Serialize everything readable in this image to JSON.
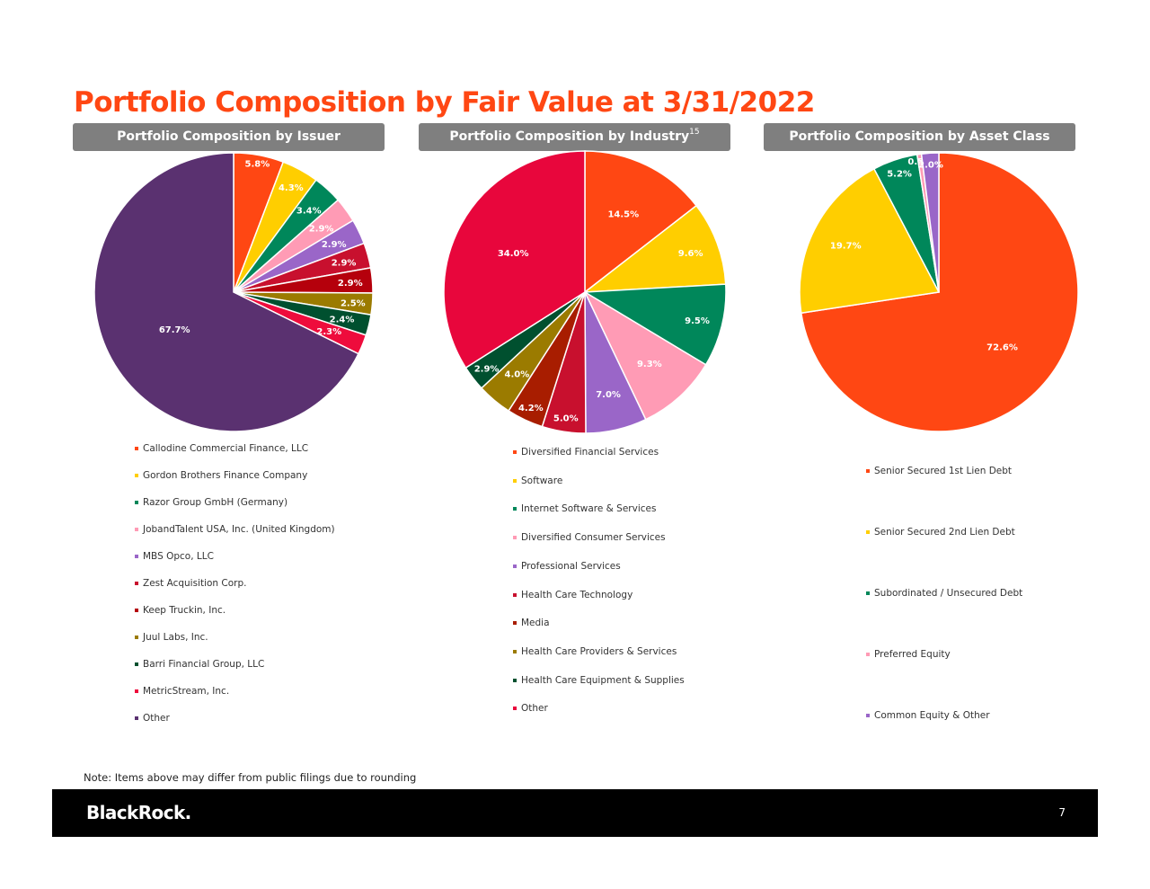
{
  "title": "Portfolio Composition by Fair Value at 3/31/2022",
  "note": "Note: Items above may differ from public filings due to rounding",
  "footer": {
    "logo_text": "BlackRock.",
    "page_number": "7"
  },
  "chart_data": [
    {
      "type": "pie",
      "title": "Portfolio Composition by Issuer",
      "title_superscript": "",
      "categories": [
        "Callodine Commercial Finance, LLC",
        "Gordon Brothers Finance Company",
        "Razor Group GmbH (Germany)",
        "JobandTalent USA, Inc. (United Kingdom)",
        "MBS Opco, LLC",
        "Zest Acquisition Corp.",
        "Keep Truckin, Inc.",
        "Juul Labs, Inc.",
        "Barri Financial Group, LLC",
        "MetricStream, Inc.",
        "Other"
      ],
      "values": [
        5.8,
        4.3,
        3.4,
        2.9,
        2.9,
        2.9,
        2.9,
        2.5,
        2.4,
        2.3,
        67.7
      ],
      "labels": [
        "5.8%",
        "4.3%",
        "3.4%",
        "2.9%",
        "2.9%",
        "2.9%",
        "2.9%",
        "2.5%",
        "2.4%",
        "2.3%",
        "67.7%"
      ],
      "colors": [
        "#ff4713",
        "#ffce00",
        "#00875a",
        "#ff9bb5",
        "#9a66c8",
        "#c8102e",
        "#b5000c",
        "#9b7b00",
        "#00502f",
        "#ee0c3c",
        "#5a3170"
      ],
      "legend_position": "bottom"
    },
    {
      "type": "pie",
      "title": "Portfolio Composition by Industry",
      "title_superscript": "15",
      "categories": [
        "Diversified Financial Services",
        "Software",
        "Internet Software & Services",
        "Diversified Consumer Services",
        "Professional Services",
        "Health Care Technology",
        "Media",
        "Health Care Providers & Services",
        "Health Care Equipment & Supplies",
        "Other"
      ],
      "values": [
        14.5,
        9.6,
        9.5,
        9.3,
        7.0,
        5.0,
        4.2,
        4.0,
        2.9,
        34.0
      ],
      "labels": [
        "14.5%",
        "9.6%",
        "9.5%",
        "9.3%",
        "7.0%",
        "5.0%",
        "4.2%",
        "4.0%",
        "2.9%",
        "34.0%"
      ],
      "colors": [
        "#ff4713",
        "#ffce00",
        "#00875a",
        "#ff9bb5",
        "#9a66c8",
        "#c8102e",
        "#a81d00",
        "#9b7b00",
        "#00502f",
        "#e8063c"
      ],
      "legend_position": "bottom"
    },
    {
      "type": "pie",
      "title": "Portfolio Composition by Asset Class",
      "title_superscript": "",
      "categories": [
        "Senior Secured 1st Lien Debt",
        "Senior Secured 2nd Lien Debt",
        "Subordinated / Unsecured Debt",
        "Preferred Equity",
        "Common Equity & Other"
      ],
      "values": [
        72.6,
        19.7,
        5.2,
        0.5,
        2.0
      ],
      "labels": [
        "72.6%",
        "19.7%",
        "5.2%",
        "0.5%",
        "2.0%"
      ],
      "colors": [
        "#ff4713",
        "#ffce00",
        "#00875a",
        "#ff9bb5",
        "#9a66c8"
      ],
      "legend_position": "bottom"
    }
  ]
}
